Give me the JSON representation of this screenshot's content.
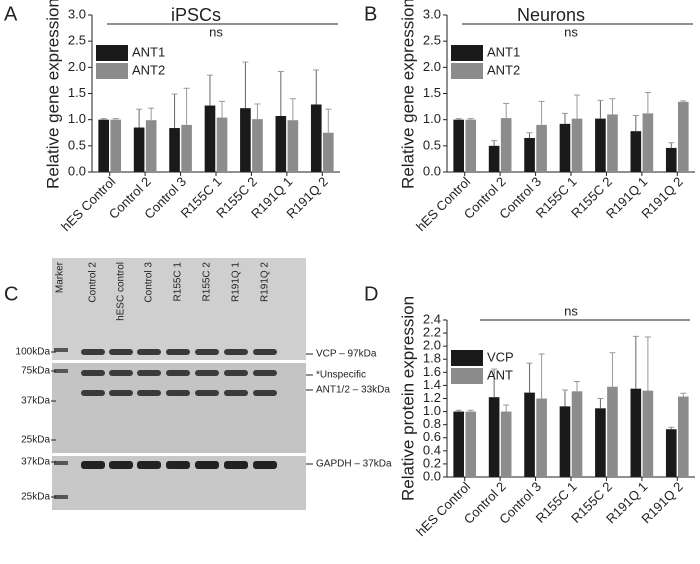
{
  "chart_data": [
    {
      "type": "bar",
      "panel_label": "A",
      "title": "iPSCs",
      "annotation": "ns",
      "ylabel": "Relative gene expression",
      "categories": [
        "hES Control",
        "Control 2",
        "Control 3",
        "R155C 1",
        "R155C 2",
        "R191Q 1",
        "R191Q 2"
      ],
      "series": [
        {
          "name": "ANT1",
          "color": "#1a1a1a",
          "values": [
            1.0,
            0.85,
            0.84,
            1.27,
            1.22,
            1.07,
            1.29
          ],
          "errors": [
            0.02,
            0.35,
            0.65,
            0.58,
            0.88,
            0.85,
            0.66
          ]
        },
        {
          "name": "ANT2",
          "color": "#8c8c8c",
          "values": [
            1.0,
            0.99,
            0.9,
            1.04,
            1.01,
            0.99,
            0.75
          ],
          "errors": [
            0.02,
            0.23,
            0.7,
            0.31,
            0.29,
            0.41,
            0.45
          ]
        }
      ],
      "ylim": [
        0,
        3
      ],
      "yticks": [
        {
          "value": 0,
          "label": "0.0"
        },
        0.5,
        {
          "value": 1,
          "label": "1.0"
        },
        1.5,
        {
          "value": 2,
          "label": "2.0"
        },
        2.5,
        {
          "value": 3,
          "label": "3.0"
        }
      ],
      "legend": "upper left"
    },
    {
      "type": "bar",
      "panel_label": "B",
      "title": "Neurons",
      "annotation": "ns",
      "ylabel": "Relative gene expression",
      "categories": [
        "hES Control",
        "Control 2",
        "Control 3",
        "R155C 1",
        "R155C 2",
        "R191Q 1",
        "R191Q 2"
      ],
      "series": [
        {
          "name": "ANT1",
          "color": "#1a1a1a",
          "values": [
            1.0,
            0.5,
            0.65,
            0.92,
            1.02,
            0.78,
            0.46
          ],
          "errors": [
            0.02,
            0.1,
            0.1,
            0.2,
            0.35,
            0.3,
            0.1
          ]
        },
        {
          "name": "ANT2",
          "color": "#8c8c8c",
          "values": [
            1.0,
            1.03,
            0.9,
            1.02,
            1.1,
            1.12,
            1.34
          ],
          "errors": [
            0.02,
            0.28,
            0.45,
            0.45,
            0.3,
            0.4,
            0.02
          ]
        }
      ],
      "ylim": [
        0,
        3
      ],
      "yticks": [
        {
          "value": 0,
          "label": "0.0"
        },
        0.5,
        {
          "value": 1,
          "label": "1.0"
        },
        1.5,
        {
          "value": 2,
          "label": "2.0"
        },
        2.5,
        {
          "value": 3,
          "label": "3.0"
        }
      ],
      "legend": "upper left"
    },
    {
      "type": "bar",
      "panel_label": "D",
      "annotation": "ns",
      "ylabel": "Relative protein expression",
      "categories": [
        "hES Control",
        "Control 2",
        "Control 3",
        "R155C 1",
        "R155C 2",
        "R191Q 1",
        "R191Q 2"
      ],
      "series": [
        {
          "name": "VCP",
          "color": "#1a1a1a",
          "values": [
            1.0,
            1.22,
            1.29,
            1.08,
            1.05,
            1.35,
            0.73
          ],
          "errors": [
            0.02,
            0.43,
            0.45,
            0.25,
            0.15,
            0.8,
            0.03
          ]
        },
        {
          "name": "ANT",
          "color": "#8c8c8c",
          "values": [
            1.0,
            1.0,
            1.2,
            1.31,
            1.38,
            1.32,
            1.23
          ],
          "errors": [
            0.02,
            0.1,
            0.68,
            0.15,
            0.52,
            0.82,
            0.05
          ]
        }
      ],
      "ylim": [
        0,
        2.4
      ],
      "yticks": [
        {
          "value": 0,
          "label": "0.0"
        },
        0.2,
        0.4,
        0.6,
        0.8,
        {
          "value": 1,
          "label": "1.0"
        },
        1.2,
        1.4,
        1.6,
        1.8,
        {
          "value": 2,
          "label": "2.0"
        },
        2.2,
        2.4
      ],
      "legend": "upper left"
    }
  ],
  "blot": {
    "panel_label": "C",
    "lanes": [
      "Marker",
      "Control 2",
      "hESC control",
      "Control 3",
      "R155C 1",
      "R155C 2",
      "R191Q 1",
      "R191Q 2"
    ],
    "markers": [
      "100kDa",
      "75kDa",
      "37kDa",
      "25kDa",
      "37kDa",
      "25kDa"
    ],
    "bands": [
      "VCP – 97kDa",
      "*Unspecific",
      "ANT1/2 – 33kDa",
      "GAPDH – 37kDa"
    ]
  }
}
